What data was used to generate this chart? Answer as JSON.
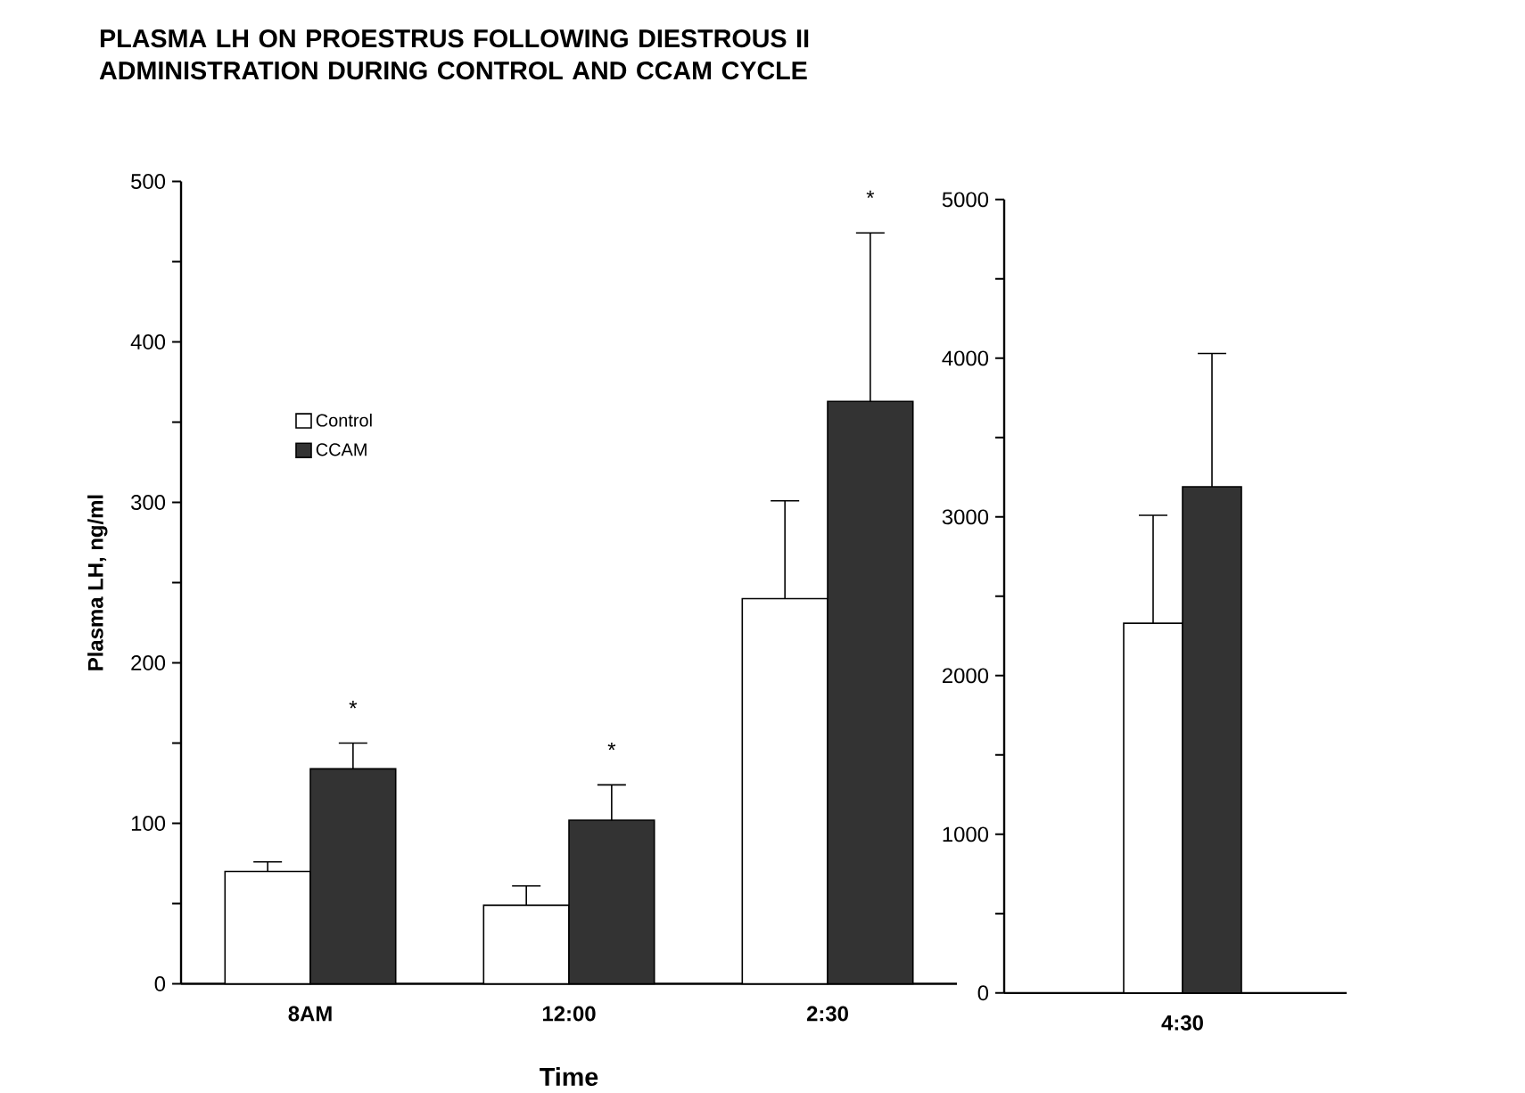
{
  "chart_data": [
    {
      "type": "bar",
      "title": "PLASMA LH ON PROESTRUS FOLLOWING DIESTROUS II ADMINISTRATION DURING CONTROL AND CCAM CYCLE",
      "xlabel": "Time",
      "ylabel": "Plasma LH, ng/ml",
      "categories": [
        "8AM",
        "12:00",
        "2:30"
      ],
      "series": [
        {
          "name": "Control",
          "color": "#ffffff",
          "values": [
            70,
            49,
            240
          ],
          "errors": [
            6,
            12,
            61
          ]
        },
        {
          "name": "CCAM",
          "color": "#333333",
          "values": [
            134,
            102,
            363
          ],
          "errors": [
            16,
            22,
            105
          ]
        }
      ],
      "ylim": [
        0,
        500
      ],
      "yticks": [
        0,
        {
          "value": 50,
          "label": null
        },
        100,
        {
          "value": 150,
          "label": null
        },
        200,
        {
          "value": 250,
          "label": null
        },
        300,
        {
          "value": 350,
          "label": null
        },
        400,
        {
          "value": 450,
          "label": null
        },
        500
      ],
      "legend": "top left",
      "grid": false,
      "annotations": [
        "*",
        "*",
        "*"
      ]
    },
    {
      "type": "bar",
      "categories": [
        "4:30"
      ],
      "series": [
        {
          "color": "#ffffff",
          "values": [
            2330
          ],
          "errors": [
            680
          ]
        },
        {
          "color": "#333333",
          "values": [
            3190
          ],
          "errors": [
            840
          ]
        }
      ],
      "ylim": [
        0,
        5000
      ],
      "yticks": [
        0,
        {
          "value": 500,
          "label": null
        },
        1000,
        {
          "value": 1500,
          "label": null
        },
        2000,
        {
          "value": 2500,
          "label": null
        },
        3000,
        {
          "value": 3500,
          "label": null
        },
        4000,
        {
          "value": 4500,
          "label": null
        },
        5000
      ],
      "legend": false,
      "grid": false
    }
  ]
}
